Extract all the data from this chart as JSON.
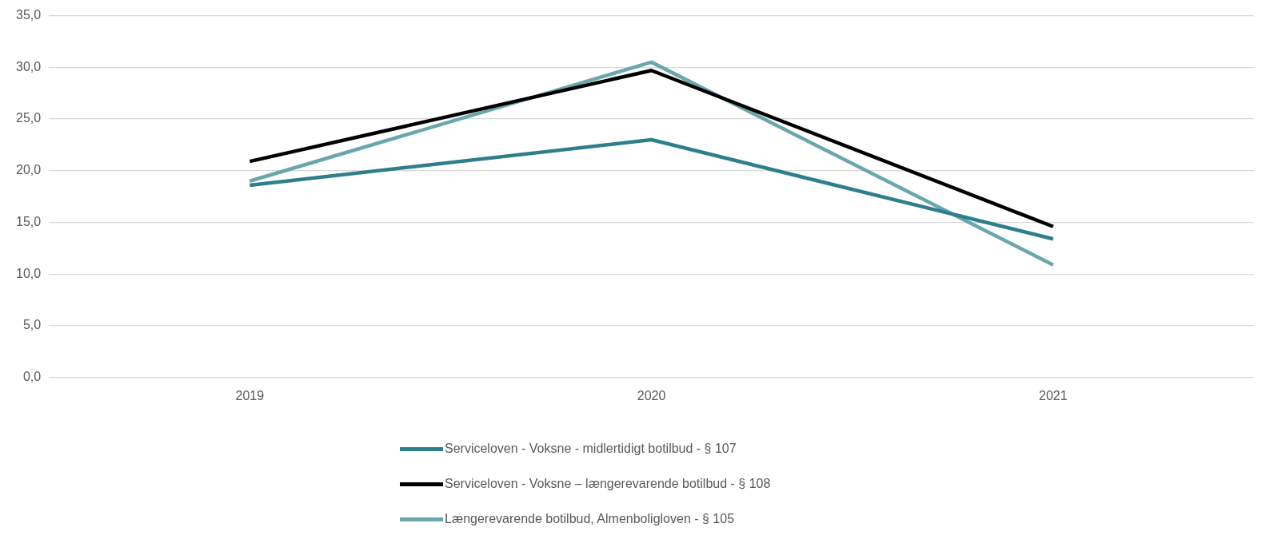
{
  "chart_data": {
    "type": "line",
    "categories": [
      "2019",
      "2020",
      "2021"
    ],
    "series": [
      {
        "name": "Serviceloven - Voksne - midlertidigt botilbud - § 107",
        "color": "#2e7f8c",
        "values": [
          18.6,
          23.0,
          13.4
        ]
      },
      {
        "name": "Serviceloven - Voksne – længerevarende botilbud - § 108",
        "color": "#000000",
        "values": [
          20.9,
          29.7,
          14.6
        ]
      },
      {
        "name": "Længerevarende botilbud, Almenboligloven - § 105",
        "color": "#6aa6ad",
        "values": [
          19.0,
          30.5,
          10.9
        ]
      }
    ],
    "ylim": [
      0,
      35
    ],
    "yticks": [
      {
        "value": 0,
        "label": "0,0"
      },
      {
        "value": 5,
        "label": "5,0"
      },
      {
        "value": 10,
        "label": "10,0"
      },
      {
        "value": 15,
        "label": "15,0"
      },
      {
        "value": 20,
        "label": "20,0"
      },
      {
        "value": 25,
        "label": "25,0"
      },
      {
        "value": 30,
        "label": "30,0"
      },
      {
        "value": 35,
        "label": "35,0"
      }
    ],
    "grid": "y",
    "legend": "bottom",
    "marker": "none",
    "line_style": "solid"
  }
}
